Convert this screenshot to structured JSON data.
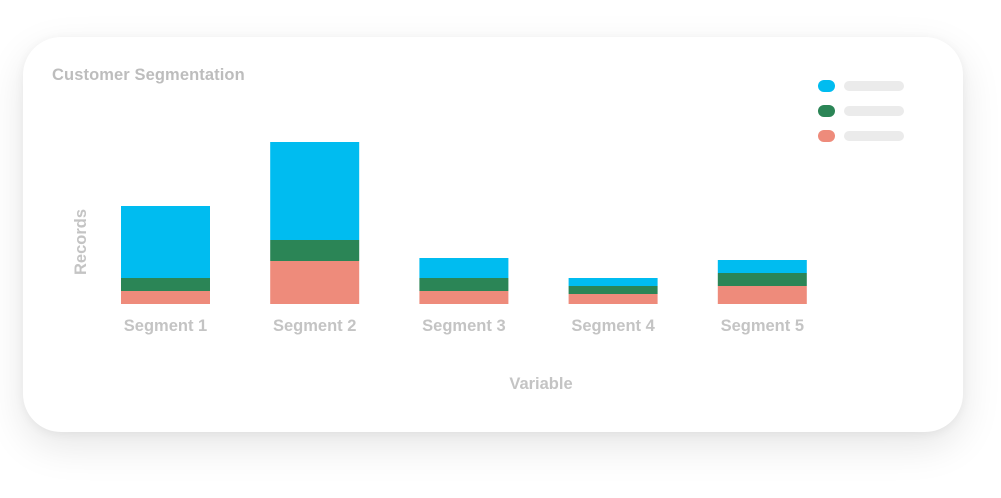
{
  "chart_data": {
    "type": "bar",
    "stacked": true,
    "title": "Customer Segmentation",
    "xlabel": "Variable",
    "ylabel": "Records",
    "categories": [
      "Segment 1",
      "Segment 2",
      "Segment 3",
      "Segment 4",
      "Segment 5"
    ],
    "series": [
      {
        "color": "#ee8b7b",
        "values": [
          13,
          43,
          13,
          10,
          18
        ]
      },
      {
        "color": "#2b8556",
        "values": [
          13,
          21,
          13,
          8,
          13
        ]
      },
      {
        "color": "#00bcf0",
        "values": [
          72,
          98,
          20,
          8,
          13
        ]
      }
    ],
    "ylim": [
      0,
      162
    ],
    "grid": false,
    "legend_position": "top-right"
  },
  "legend": {
    "entries": [
      {
        "color": "#00bcf0"
      },
      {
        "color": "#2b8556"
      },
      {
        "color": "#ee8b7b"
      }
    ]
  }
}
